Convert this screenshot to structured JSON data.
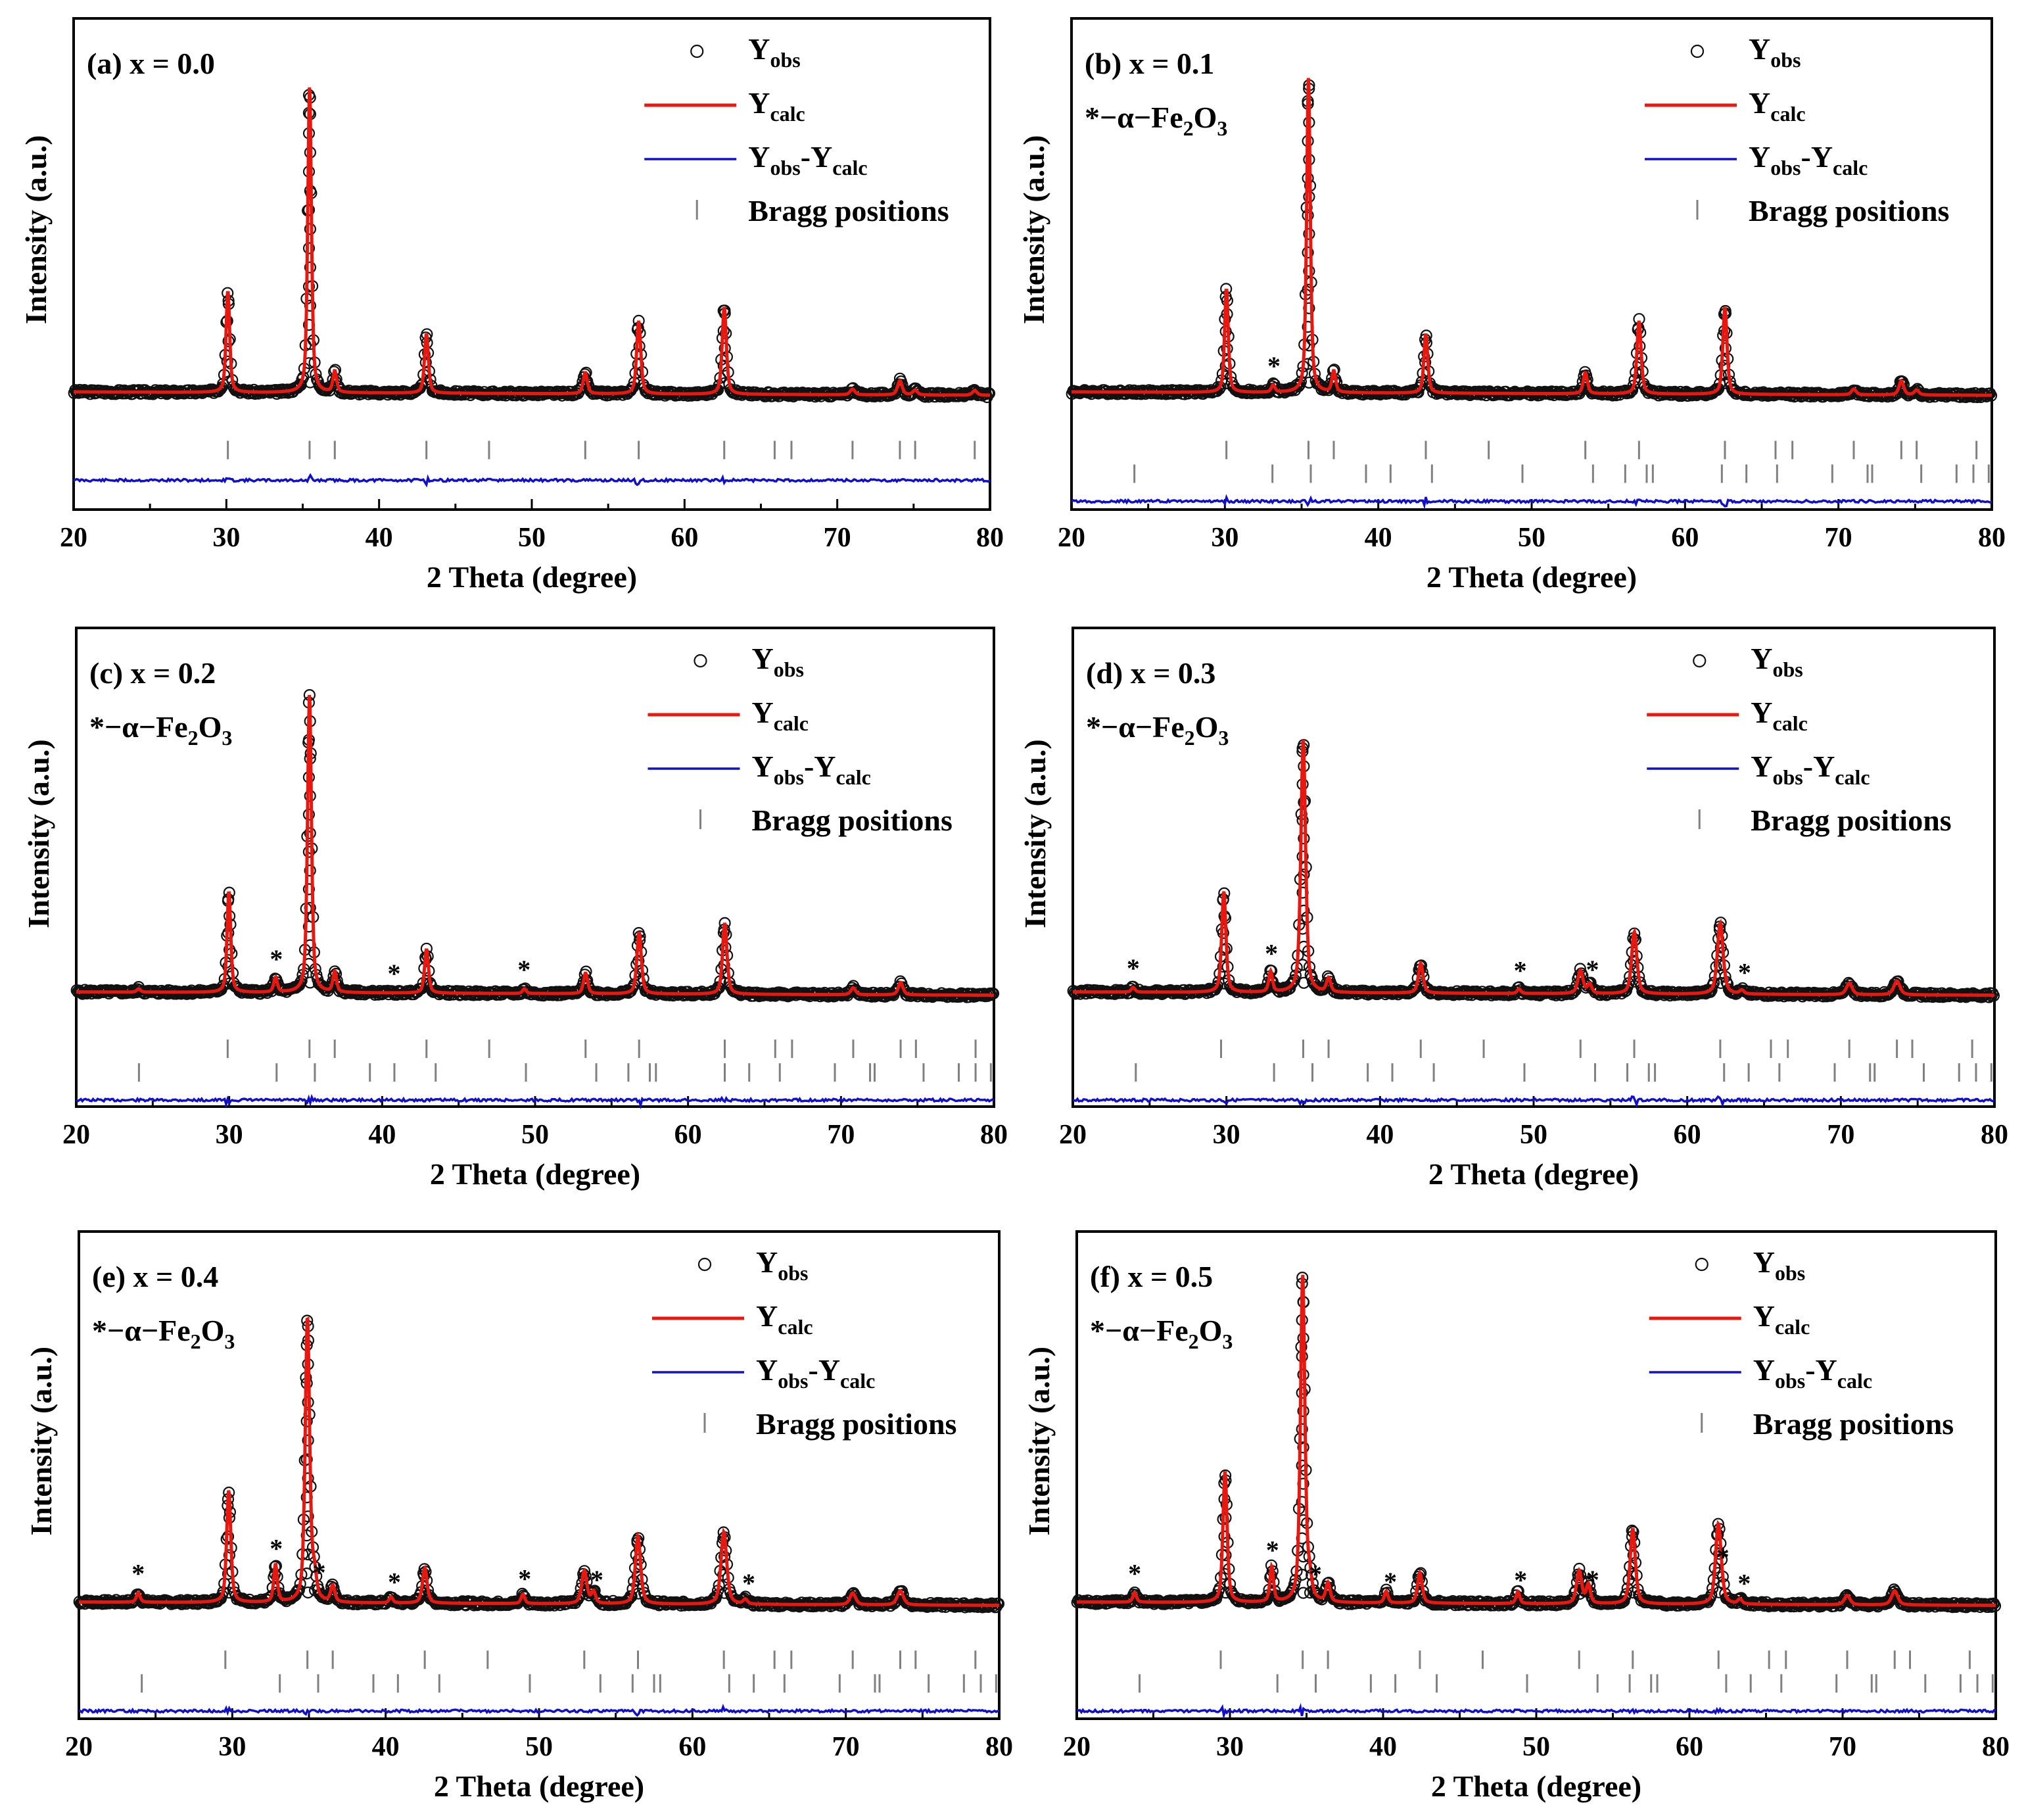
{
  "chart_data": {
    "type": "line",
    "figure": "Rietveld refinement XRD patterns",
    "xlabel": "2 Theta (degree)",
    "ylabel": "Intensity (a.u.)",
    "xlim": [
      20,
      80
    ],
    "xticks": [
      20,
      30,
      40,
      50,
      60,
      70,
      80
    ],
    "legend": {
      "obs": {
        "main": "Y",
        "sub": "obs"
      },
      "calc": {
        "main": "Y",
        "sub": "calc"
      },
      "diff": {
        "main1": "Y",
        "sub1": "obs",
        "dash": "-",
        "main2": "Y",
        "sub2": "calc"
      },
      "bragg": "Bragg positions"
    },
    "impurity_label": {
      "prefix": "*−α−Fe",
      "sub1": "2",
      "mid": "O",
      "sub2": "3"
    },
    "colors": {
      "obs": "#111111",
      "calc": "#e8170f",
      "diff": "#1010cc",
      "bragg": "#808080"
    },
    "main_bragg_positions": [
      30.1,
      35.45,
      37.1,
      43.1,
      47.2,
      53.5,
      57.0,
      62.6,
      65.9,
      67.0,
      71.0,
      74.1,
      75.1,
      79.0
    ],
    "impurity_bragg_positions": [
      24.1,
      33.1,
      35.6,
      39.2,
      40.8,
      43.5,
      49.4,
      54.0,
      56.1,
      57.5,
      57.9,
      62.4,
      64.0,
      66.0,
      69.6,
      71.9,
      72.2,
      75.4,
      77.7,
      78.8,
      79.8
    ],
    "panels": [
      {
        "label": "(a) x = 0.0",
        "has_impurity": false,
        "shift": 0.0,
        "baseline": 1.0,
        "peaks": [
          {
            "pos": 30.1,
            "h": 21.5,
            "w": 0.14
          },
          {
            "pos": 35.45,
            "h": 65.0,
            "w": 0.14
          },
          {
            "pos": 37.1,
            "h": 4.5,
            "w": 0.14
          },
          {
            "pos": 43.1,
            "h": 12.5,
            "w": 0.15
          },
          {
            "pos": 53.5,
            "h": 4.5,
            "w": 0.16
          },
          {
            "pos": 57.0,
            "h": 15.5,
            "w": 0.16
          },
          {
            "pos": 62.6,
            "h": 18.5,
            "w": 0.16
          },
          {
            "pos": 71.0,
            "h": 1.2,
            "w": 0.18
          },
          {
            "pos": 74.1,
            "h": 3.0,
            "w": 0.18
          },
          {
            "pos": 75.1,
            "h": 1.0,
            "w": 0.18
          },
          {
            "pos": 79.0,
            "h": 1.0,
            "w": 0.18
          }
        ],
        "stars": []
      },
      {
        "label": "(b) x = 0.1",
        "has_impurity": true,
        "shift": 0.0,
        "baseline": 1.0,
        "peaks": [
          {
            "pos": 30.1,
            "h": 22.0,
            "w": 0.14
          },
          {
            "pos": 35.45,
            "h": 67.0,
            "w": 0.14
          },
          {
            "pos": 37.1,
            "h": 4.5,
            "w": 0.14
          },
          {
            "pos": 43.1,
            "h": 12.5,
            "w": 0.15
          },
          {
            "pos": 53.5,
            "h": 4.5,
            "w": 0.16
          },
          {
            "pos": 57.0,
            "h": 15.5,
            "w": 0.16
          },
          {
            "pos": 62.6,
            "h": 18.5,
            "w": 0.16
          },
          {
            "pos": 71.0,
            "h": 1.2,
            "w": 0.18
          },
          {
            "pos": 74.1,
            "h": 3.0,
            "w": 0.18
          },
          {
            "pos": 75.1,
            "h": 1.0,
            "w": 0.18
          },
          {
            "pos": 33.15,
            "h": 1.5,
            "w": 0.14
          }
        ],
        "stars": [
          33.2
        ]
      },
      {
        "label": "(c) x = 0.2",
        "has_impurity": true,
        "shift": -0.2,
        "baseline": 1.0,
        "peaks": [
          {
            "pos": 30.1,
            "h": 22.0,
            "w": 0.14
          },
          {
            "pos": 35.45,
            "h": 65.0,
            "w": 0.15
          },
          {
            "pos": 37.1,
            "h": 4.5,
            "w": 0.14
          },
          {
            "pos": 43.1,
            "h": 9.5,
            "w": 0.15
          },
          {
            "pos": 53.5,
            "h": 4.5,
            "w": 0.16
          },
          {
            "pos": 57.0,
            "h": 13.5,
            "w": 0.17
          },
          {
            "pos": 62.6,
            "h": 15.5,
            "w": 0.17
          },
          {
            "pos": 71.0,
            "h": 1.5,
            "w": 0.18
          },
          {
            "pos": 74.1,
            "h": 2.7,
            "w": 0.18
          },
          {
            "pos": 33.15,
            "h": 3.2,
            "w": 0.14
          },
          {
            "pos": 24.2,
            "h": 0.7,
            "w": 0.14
          },
          {
            "pos": 49.5,
            "h": 1.0,
            "w": 0.14
          }
        ],
        "stars": [
          33.2,
          40.9,
          49.4
        ]
      },
      {
        "label": "(d) x = 0.3",
        "has_impurity": true,
        "shift": -0.45,
        "baseline": 1.0,
        "peaks": [
          {
            "pos": 30.1,
            "h": 22.0,
            "w": 0.16
          },
          {
            "pos": 35.45,
            "h": 55.0,
            "w": 0.18
          },
          {
            "pos": 37.1,
            "h": 3.0,
            "w": 0.16
          },
          {
            "pos": 43.1,
            "h": 6.5,
            "w": 0.18
          },
          {
            "pos": 53.5,
            "h": 5.0,
            "w": 0.2
          },
          {
            "pos": 57.0,
            "h": 13.5,
            "w": 0.2
          },
          {
            "pos": 62.6,
            "h": 15.5,
            "w": 0.22
          },
          {
            "pos": 71.0,
            "h": 2.5,
            "w": 0.22
          },
          {
            "pos": 74.1,
            "h": 3.0,
            "w": 0.24
          },
          {
            "pos": 33.15,
            "h": 4.5,
            "w": 0.14
          },
          {
            "pos": 24.2,
            "h": 1.0,
            "w": 0.14
          },
          {
            "pos": 49.5,
            "h": 1.0,
            "w": 0.14
          },
          {
            "pos": 54.1,
            "h": 2.0,
            "w": 0.16
          },
          {
            "pos": 64.0,
            "h": 0.8,
            "w": 0.16
          }
        ],
        "stars": [
          24.2,
          33.2,
          49.4,
          54.1,
          64.0
        ]
      },
      {
        "label": "(e) x = 0.4",
        "has_impurity": true,
        "shift": -0.55,
        "baseline": 1.0,
        "peaks": [
          {
            "pos": 30.1,
            "h": 24.0,
            "w": 0.16
          },
          {
            "pos": 35.45,
            "h": 61.0,
            "w": 0.17
          },
          {
            "pos": 37.1,
            "h": 3.5,
            "w": 0.16
          },
          {
            "pos": 43.1,
            "h": 7.5,
            "w": 0.18
          },
          {
            "pos": 53.5,
            "h": 7.0,
            "w": 0.2
          },
          {
            "pos": 57.0,
            "h": 14.5,
            "w": 0.2
          },
          {
            "pos": 62.6,
            "h": 15.5,
            "w": 0.22
          },
          {
            "pos": 71.0,
            "h": 2.5,
            "w": 0.22
          },
          {
            "pos": 74.1,
            "h": 3.0,
            "w": 0.24
          },
          {
            "pos": 33.15,
            "h": 8.0,
            "w": 0.14
          },
          {
            "pos": 24.2,
            "h": 2.0,
            "w": 0.14
          },
          {
            "pos": 35.9,
            "h": 5.0,
            "w": 0.16
          },
          {
            "pos": 40.9,
            "h": 1.3,
            "w": 0.14
          },
          {
            "pos": 49.5,
            "h": 2.0,
            "w": 0.14
          },
          {
            "pos": 54.1,
            "h": 2.5,
            "w": 0.16
          },
          {
            "pos": 64.0,
            "h": 1.0,
            "w": 0.16
          }
        ],
        "stars": [
          24.2,
          33.2,
          36.0,
          40.9,
          49.4,
          54.1,
          64.0
        ]
      },
      {
        "label": "(f) x = 0.5",
        "has_impurity": true,
        "shift": -0.7,
        "baseline": 1.0,
        "peaks": [
          {
            "pos": 30.1,
            "h": 28.0,
            "w": 0.16
          },
          {
            "pos": 35.45,
            "h": 70.0,
            "w": 0.17
          },
          {
            "pos": 37.1,
            "h": 4.0,
            "w": 0.16
          },
          {
            "pos": 43.1,
            "h": 6.5,
            "w": 0.18
          },
          {
            "pos": 53.5,
            "h": 7.0,
            "w": 0.2
          },
          {
            "pos": 57.0,
            "h": 16.0,
            "w": 0.2
          },
          {
            "pos": 62.6,
            "h": 16.5,
            "w": 0.22
          },
          {
            "pos": 71.0,
            "h": 2.0,
            "w": 0.22
          },
          {
            "pos": 74.1,
            "h": 3.0,
            "w": 0.24
          },
          {
            "pos": 33.15,
            "h": 7.5,
            "w": 0.14
          },
          {
            "pos": 24.2,
            "h": 2.0,
            "w": 0.14
          },
          {
            "pos": 35.9,
            "h": 4.0,
            "w": 0.16
          },
          {
            "pos": 40.9,
            "h": 2.5,
            "w": 0.14
          },
          {
            "pos": 49.5,
            "h": 2.5,
            "w": 0.14
          },
          {
            "pos": 54.1,
            "h": 4.0,
            "w": 0.16
          },
          {
            "pos": 62.5,
            "h": 1.0,
            "w": 0.16
          },
          {
            "pos": 64.0,
            "h": 1.0,
            "w": 0.16
          }
        ],
        "stars": [
          24.2,
          33.2,
          36.0,
          40.9,
          49.4,
          54.1,
          62.6,
          64.0
        ]
      }
    ]
  }
}
